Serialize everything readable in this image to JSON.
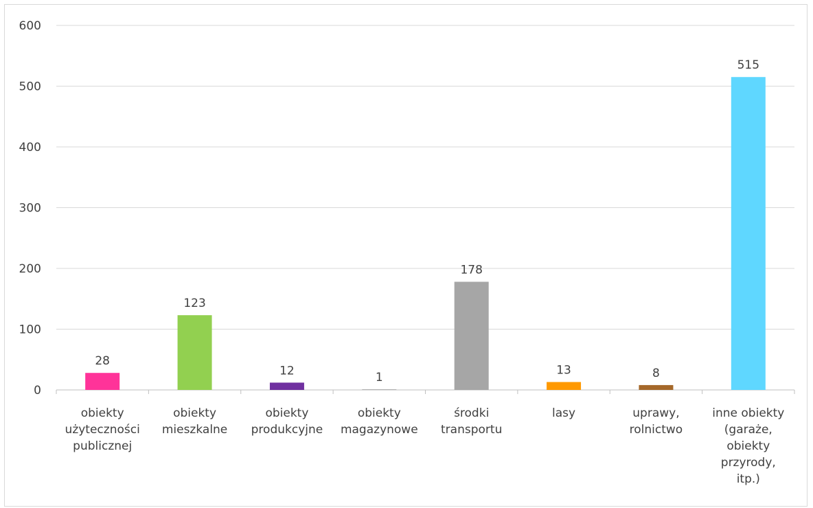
{
  "chart_data": {
    "type": "bar",
    "title": "",
    "xlabel": "",
    "ylabel": "",
    "ylim": [
      0,
      600
    ],
    "yticks": [
      0,
      100,
      200,
      300,
      400,
      500,
      600
    ],
    "grid": true,
    "legend": "none",
    "categories": [
      [
        "obiekty",
        "użyteczności",
        "publicznej"
      ],
      [
        "obiekty",
        "mieszkalne"
      ],
      [
        "obiekty",
        "produkcyjne"
      ],
      [
        "obiekty",
        "magazynowe"
      ],
      [
        "środki",
        "transportu"
      ],
      [
        "lasy"
      ],
      [
        "uprawy,",
        "rolnictwo"
      ],
      [
        "inne obiekty",
        "(garaże,",
        "obiekty",
        "przyrody,",
        "itp.)"
      ]
    ],
    "values": [
      28,
      123,
      12,
      1,
      178,
      13,
      8,
      515
    ],
    "colors": [
      "#ff3399",
      "#92d050",
      "#7030a0",
      "#a6a6a6",
      "#a6a6a6",
      "#ff9900",
      "#a5682a",
      "#5fd7ff"
    ]
  }
}
